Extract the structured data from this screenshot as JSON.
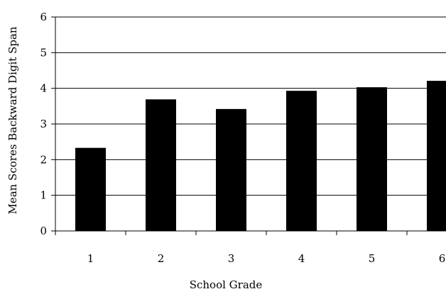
{
  "chart_data": {
    "type": "bar",
    "xlabel": "School Grade",
    "ylabel": "Mean Scores Backward Digit Span",
    "categories": [
      "1",
      "2",
      "3",
      "4",
      "5",
      "6"
    ],
    "values": [
      2.33,
      3.69,
      3.42,
      3.93,
      4.03,
      4.21
    ],
    "ylim": [
      0,
      6
    ],
    "yticks": [
      "0",
      "1",
      "2",
      "3",
      "4",
      "5",
      "6"
    ],
    "grid": true,
    "legend": "none",
    "bar_color": "#000000"
  }
}
